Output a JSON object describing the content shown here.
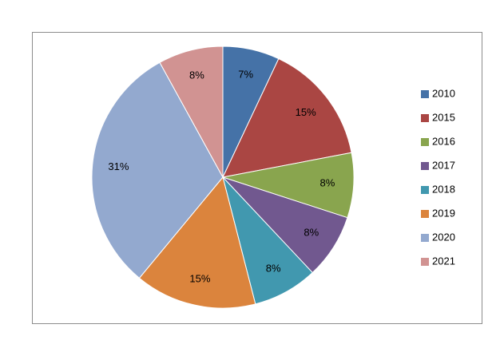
{
  "chart_data": {
    "type": "pie",
    "categories": [
      "2010",
      "2015",
      "2016",
      "2017",
      "2018",
      "2019",
      "2020",
      "2021"
    ],
    "values": [
      7,
      15,
      8,
      8,
      8,
      15,
      31,
      8
    ],
    "value_labels": [
      "7%",
      "15%",
      "8%",
      "8%",
      "8%",
      "15%",
      "31%",
      "8%"
    ],
    "colors": [
      "#4572a7",
      "#aa4643",
      "#89a54e",
      "#71588f",
      "#4198af",
      "#db843d",
      "#93a9cf",
      "#d19392"
    ],
    "legend": "right"
  }
}
